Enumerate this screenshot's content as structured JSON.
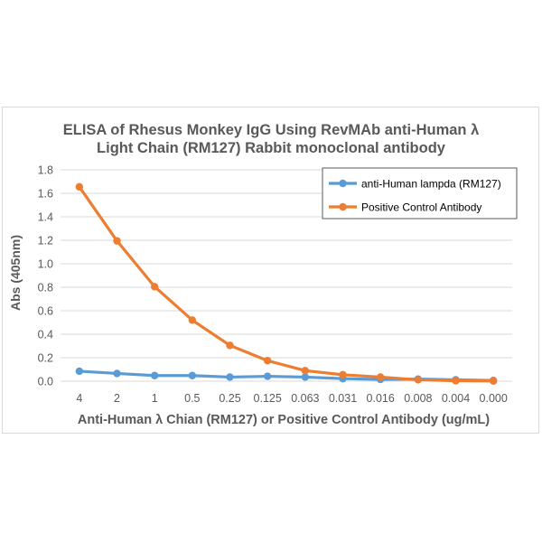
{
  "chart_data": {
    "type": "line",
    "title_lines": [
      "ELISA of Rhesus Monkey IgG Using RevMAb anti-Human  λ",
      "Light Chain (RM127) Rabbit monoclonal antibody"
    ],
    "xlabel": "Anti-Human λ Chian (RM127) or Positive Control Antibody  (ug/mL)",
    "ylabel": "Abs (405nm)",
    "categories": [
      "4",
      "2",
      "1",
      "0.5",
      "0.25",
      "0.125",
      "0.063",
      "0.031",
      "0.016",
      "0.008",
      "0.004",
      "0.000"
    ],
    "ylim": [
      0,
      1.8
    ],
    "yticks": [
      "0.0",
      "0.2",
      "0.4",
      "0.6",
      "0.8",
      "1.0",
      "1.2",
      "1.4",
      "1.6",
      "1.8"
    ],
    "grid": true,
    "legend_position": "top-right",
    "series": [
      {
        "name": "anti-Human lampda (RM127)",
        "color": "#5B9BD5",
        "values": [
          0.085,
          0.066,
          0.048,
          0.048,
          0.035,
          0.042,
          0.035,
          0.022,
          0.015,
          0.018,
          0.012,
          0.006
        ]
      },
      {
        "name": "Positive Control Antibody",
        "color": "#ED7D31",
        "values": [
          1.655,
          1.195,
          0.805,
          0.52,
          0.305,
          0.175,
          0.09,
          0.055,
          0.035,
          0.012,
          0.004,
          0.002
        ]
      }
    ]
  }
}
